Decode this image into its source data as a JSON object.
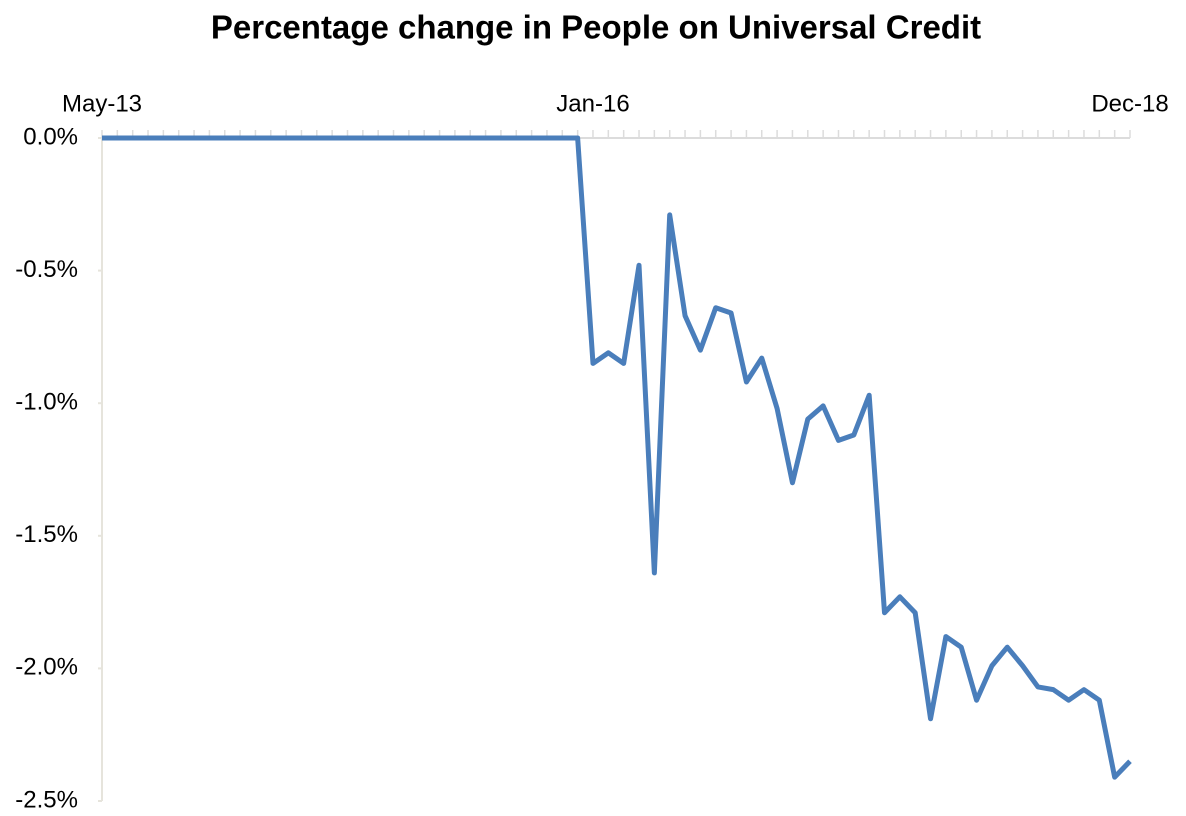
{
  "chart_data": {
    "type": "line",
    "title": "Percentage change in People on Universal Credit",
    "categories": [
      "May-13",
      null,
      null,
      null,
      null,
      null,
      null,
      null,
      null,
      null,
      null,
      null,
      null,
      null,
      null,
      null,
      null,
      null,
      null,
      null,
      null,
      null,
      null,
      null,
      null,
      null,
      null,
      null,
      null,
      null,
      null,
      null,
      "Jan-16",
      null,
      null,
      null,
      null,
      null,
      null,
      null,
      null,
      null,
      null,
      null,
      null,
      null,
      null,
      null,
      null,
      null,
      null,
      null,
      null,
      null,
      null,
      null,
      null,
      null,
      null,
      null,
      null,
      null,
      null,
      null,
      null,
      null,
      null,
      "Dec-18"
    ],
    "series": [
      {
        "color": "#4a7ebb",
        "values": [
          0,
          0,
          0,
          0,
          0,
          0,
          0,
          0,
          0,
          0,
          0,
          0,
          0,
          0,
          0,
          0,
          0,
          0,
          0,
          0,
          0,
          0,
          0,
          0,
          0,
          0,
          0,
          0,
          0,
          0,
          0,
          0,
          -0.85,
          -0.81,
          -0.85,
          -0.48,
          -1.64,
          -0.29,
          -0.67,
          -0.8,
          -0.64,
          -0.66,
          -0.92,
          -0.83,
          -1.02,
          -1.3,
          -1.06,
          -1.01,
          -1.14,
          -1.12,
          -0.97,
          -1.79,
          -1.73,
          -1.79,
          -2.19,
          -1.88,
          -1.92,
          -2.12,
          -1.99,
          -1.92,
          -1.99,
          -2.07,
          -2.08,
          -2.12,
          -2.08,
          -2.12,
          -2.41,
          -2.35
        ]
      }
    ],
    "ylim": [
      -2.5,
      0
    ],
    "yticks": [
      {
        "value": 0,
        "label": "0.0%"
      },
      {
        "value": -0.5,
        "label": "-0.5%"
      },
      {
        "value": -1,
        "label": "-1.0%"
      },
      {
        "value": -1.5,
        "label": "-1.5%"
      },
      {
        "value": -2,
        "label": "-2.0%"
      },
      {
        "value": -2.5,
        "label": "-2.5%"
      }
    ]
  }
}
